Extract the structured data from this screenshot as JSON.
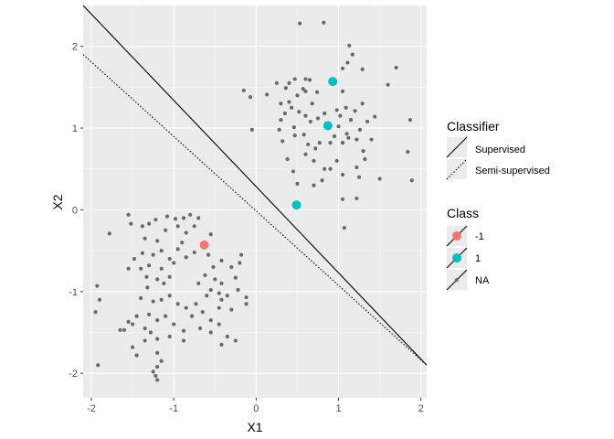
{
  "chart_data": {
    "type": "scatter",
    "xlabel": "X1",
    "ylabel": "X2",
    "xlim": [
      -2.1,
      2.07
    ],
    "ylim": [
      -2.3,
      2.5
    ],
    "x_ticks": [
      -2,
      -1,
      0,
      1,
      2
    ],
    "y_ticks": [
      -2,
      -1,
      0,
      1,
      2
    ],
    "x_tick_labels": [
      "-2",
      "-1",
      "0",
      "1",
      "2"
    ],
    "y_tick_labels": [
      "-2",
      "-1",
      "0",
      "1",
      "2"
    ],
    "grid": true,
    "background": "#ebebeb",
    "legend_position": "right",
    "lines": [
      {
        "name": "Supervised",
        "style": "solid",
        "x": [
          -2.1,
          2.07
        ],
        "y": [
          2.5,
          -1.9
        ]
      },
      {
        "name": "Semi-supervised",
        "style": "dotted",
        "x": [
          -2.1,
          2.07
        ],
        "y": [
          1.9,
          -1.9
        ]
      }
    ],
    "classes": [
      {
        "name": "-1",
        "color": "#f8766d"
      },
      {
        "name": "1",
        "color": "#00bfc4"
      },
      {
        "name": "NA",
        "color": "#696969"
      }
    ],
    "labeled_points": [
      {
        "x": -0.63,
        "y": -0.43,
        "class": "-1"
      },
      {
        "x": 0.93,
        "y": 1.57,
        "class": "1"
      },
      {
        "x": 0.87,
        "y": 1.03,
        "class": "1"
      },
      {
        "x": 0.49,
        "y": 0.06,
        "class": "1"
      }
    ],
    "unlabeled_points": [
      {
        "x": 0.53,
        "y": 2.28
      },
      {
        "x": 0.82,
        "y": 2.29
      },
      {
        "x": 1.13,
        "y": 2.01
      },
      {
        "x": 1.17,
        "y": 1.9
      },
      {
        "x": 1.11,
        "y": 1.8
      },
      {
        "x": 1.05,
        "y": 1.73
      },
      {
        "x": 1.29,
        "y": 1.72
      },
      {
        "x": 1.7,
        "y": 1.74
      },
      {
        "x": 1.6,
        "y": 1.53
      },
      {
        "x": 0.6,
        "y": 1.6
      },
      {
        "x": 0.65,
        "y": 1.59
      },
      {
        "x": 0.47,
        "y": 1.6
      },
      {
        "x": 0.4,
        "y": 1.55
      },
      {
        "x": 0.36,
        "y": 1.49
      },
      {
        "x": 0.57,
        "y": 1.48
      },
      {
        "x": 0.6,
        "y": 1.45
      },
      {
        "x": 0.74,
        "y": 1.44
      },
      {
        "x": 0.5,
        "y": 1.4
      },
      {
        "x": 0.13,
        "y": 1.41
      },
      {
        "x": -0.15,
        "y": 1.46
      },
      {
        "x": -0.07,
        "y": 1.38
      },
      {
        "x": 0.4,
        "y": 1.32
      },
      {
        "x": 0.3,
        "y": 1.3
      },
      {
        "x": 0.52,
        "y": 1.2
      },
      {
        "x": 0.6,
        "y": 1.15
      },
      {
        "x": 0.43,
        "y": 1.25
      },
      {
        "x": 0.35,
        "y": 1.18
      },
      {
        "x": 0.3,
        "y": 1.1
      },
      {
        "x": 0.28,
        "y": 0.98
      },
      {
        "x": 0.46,
        "y": 1.01
      },
      {
        "x": 0.47,
        "y": 0.91
      },
      {
        "x": 0.32,
        "y": 0.84
      },
      {
        "x": 0.58,
        "y": 0.92
      },
      {
        "x": 0.63,
        "y": 0.8
      },
      {
        "x": 0.6,
        "y": 0.68
      },
      {
        "x": 0.72,
        "y": 0.75
      },
      {
        "x": 0.77,
        "y": 0.82
      },
      {
        "x": 0.66,
        "y": 1.08
      },
      {
        "x": 0.75,
        "y": 1.12
      },
      {
        "x": 0.83,
        "y": 1.18
      },
      {
        "x": 0.98,
        "y": 1.22
      },
      {
        "x": 1.02,
        "y": 1.15
      },
      {
        "x": 1.09,
        "y": 1.25
      },
      {
        "x": 1.15,
        "y": 1.1
      },
      {
        "x": 1.2,
        "y": 1.21
      },
      {
        "x": 1.29,
        "y": 1.3
      },
      {
        "x": 1.35,
        "y": 1.08
      },
      {
        "x": 1.44,
        "y": 1.14
      },
      {
        "x": 1.26,
        "y": 0.98
      },
      {
        "x": 1.1,
        "y": 0.93
      },
      {
        "x": 1.0,
        "y": 1.02
      },
      {
        "x": 0.95,
        "y": 0.9
      },
      {
        "x": 0.9,
        "y": 0.82
      },
      {
        "x": 1.05,
        "y": 0.82
      },
      {
        "x": 1.12,
        "y": 0.88
      },
      {
        "x": 1.22,
        "y": 0.86
      },
      {
        "x": 1.4,
        "y": 0.86
      },
      {
        "x": 1.3,
        "y": 0.72
      },
      {
        "x": 0.98,
        "y": 0.6
      },
      {
        "x": 0.9,
        "y": 0.5
      },
      {
        "x": 0.83,
        "y": 0.5
      },
      {
        "x": 0.7,
        "y": 0.6
      },
      {
        "x": 0.45,
        "y": 0.47
      },
      {
        "x": 0.5,
        "y": 0.32
      },
      {
        "x": 0.7,
        "y": 0.3
      },
      {
        "x": 0.8,
        "y": 0.36
      },
      {
        "x": 1.05,
        "y": 0.43
      },
      {
        "x": 1.22,
        "y": 0.52
      },
      {
        "x": 1.25,
        "y": 0.4
      },
      {
        "x": 1.5,
        "y": 0.38
      },
      {
        "x": 1.05,
        "y": 0.13
      },
      {
        "x": 1.22,
        "y": 0.14
      },
      {
        "x": 1.07,
        "y": -0.22
      },
      {
        "x": 1.87,
        "y": 1.1
      },
      {
        "x": 1.84,
        "y": 0.71
      },
      {
        "x": 1.89,
        "y": 0.36
      },
      {
        "x": -0.05,
        "y": 0.98
      },
      {
        "x": 0.25,
        "y": 1.55
      },
      {
        "x": 0.68,
        "y": 1.3
      },
      {
        "x": 1.05,
        "y": 1.45
      },
      {
        "x": 0.38,
        "y": 0.62
      },
      {
        "x": 1.32,
        "y": 0.62
      },
      {
        "x": -1.55,
        "y": -0.06
      },
      {
        "x": -1.78,
        "y": -0.29
      },
      {
        "x": -1.52,
        "y": -0.17
      },
      {
        "x": -1.38,
        "y": -0.2
      },
      {
        "x": -1.3,
        "y": -0.17
      },
      {
        "x": -1.22,
        "y": -0.12
      },
      {
        "x": -1.08,
        "y": -0.08
      },
      {
        "x": -0.98,
        "y": -0.11
      },
      {
        "x": -0.88,
        "y": -0.1
      },
      {
        "x": -0.8,
        "y": -0.06
      },
      {
        "x": -0.7,
        "y": -0.1
      },
      {
        "x": -0.95,
        "y": -0.2
      },
      {
        "x": -0.75,
        "y": -0.2
      },
      {
        "x": -0.85,
        "y": -0.28
      },
      {
        "x": -0.55,
        "y": -0.3
      },
      {
        "x": -1.1,
        "y": -0.25
      },
      {
        "x": -1.2,
        "y": -0.38
      },
      {
        "x": -1.35,
        "y": -0.35
      },
      {
        "x": -1.15,
        "y": -0.5
      },
      {
        "x": -1.25,
        "y": -0.55
      },
      {
        "x": -1.38,
        "y": -0.53
      },
      {
        "x": -1.48,
        "y": -0.6
      },
      {
        "x": -1.55,
        "y": -0.72
      },
      {
        "x": -1.4,
        "y": -0.72
      },
      {
        "x": -1.3,
        "y": -0.68
      },
      {
        "x": -1.33,
        "y": -0.82
      },
      {
        "x": -1.15,
        "y": -0.72
      },
      {
        "x": -1.05,
        "y": -0.6
      },
      {
        "x": -0.95,
        "y": -0.48
      },
      {
        "x": -0.85,
        "y": -0.58
      },
      {
        "x": -0.75,
        "y": -0.52
      },
      {
        "x": -0.58,
        "y": -0.55
      },
      {
        "x": -0.52,
        "y": -0.7
      },
      {
        "x": -0.62,
        "y": -0.8
      },
      {
        "x": -0.7,
        "y": -0.9
      },
      {
        "x": -0.5,
        "y": -0.85
      },
      {
        "x": -0.55,
        "y": -0.98
      },
      {
        "x": -0.45,
        "y": -1.02
      },
      {
        "x": -0.6,
        "y": -1.05
      },
      {
        "x": -0.42,
        "y": -0.9
      },
      {
        "x": -0.35,
        "y": -1.05
      },
      {
        "x": -0.22,
        "y": -0.98
      },
      {
        "x": -0.25,
        "y": -0.83
      },
      {
        "x": -0.3,
        "y": -0.7
      },
      {
        "x": -0.42,
        "y": -0.62
      },
      {
        "x": -1.05,
        "y": -0.82
      },
      {
        "x": -1.12,
        "y": -0.9
      },
      {
        "x": -1.2,
        "y": -0.85
      },
      {
        "x": -1.32,
        "y": -0.95
      },
      {
        "x": -1.4,
        "y": -1.08
      },
      {
        "x": -1.25,
        "y": -1.12
      },
      {
        "x": -1.15,
        "y": -1.1
      },
      {
        "x": -1.05,
        "y": -1.05
      },
      {
        "x": -0.95,
        "y": -1.15
      },
      {
        "x": -0.85,
        "y": -1.2
      },
      {
        "x": -0.73,
        "y": -1.15
      },
      {
        "x": -0.65,
        "y": -1.25
      },
      {
        "x": -0.55,
        "y": -1.35
      },
      {
        "x": -0.78,
        "y": -1.3
      },
      {
        "x": -1.1,
        "y": -1.3
      },
      {
        "x": -1.2,
        "y": -1.35
      },
      {
        "x": -1.3,
        "y": -1.28
      },
      {
        "x": -1.45,
        "y": -1.3
      },
      {
        "x": -1.5,
        "y": -1.4
      },
      {
        "x": -1.55,
        "y": -1.37
      },
      {
        "x": -1.6,
        "y": -1.47
      },
      {
        "x": -1.65,
        "y": -1.47
      },
      {
        "x": -1.35,
        "y": -1.45
      },
      {
        "x": -1.28,
        "y": -1.5
      },
      {
        "x": -1.0,
        "y": -1.4
      },
      {
        "x": -0.88,
        "y": -1.48
      },
      {
        "x": -0.68,
        "y": -1.45
      },
      {
        "x": -0.55,
        "y": -1.5
      },
      {
        "x": -0.45,
        "y": -1.4
      },
      {
        "x": -0.35,
        "y": -1.55
      },
      {
        "x": -0.25,
        "y": -1.6
      },
      {
        "x": -0.42,
        "y": -1.65
      },
      {
        "x": -0.88,
        "y": -1.6
      },
      {
        "x": -1.05,
        "y": -1.55
      },
      {
        "x": -1.35,
        "y": -1.6
      },
      {
        "x": -1.5,
        "y": -1.68
      },
      {
        "x": -1.45,
        "y": -1.78
      },
      {
        "x": -1.2,
        "y": -1.75
      },
      {
        "x": -1.15,
        "y": -1.85
      },
      {
        "x": -1.2,
        "y": -1.92
      },
      {
        "x": -1.25,
        "y": -1.98
      },
      {
        "x": -1.22,
        "y": -2.03
      },
      {
        "x": -1.2,
        "y": -2.08
      },
      {
        "x": -1.92,
        "y": -1.9
      },
      {
        "x": -1.93,
        "y": -0.93
      },
      {
        "x": -1.9,
        "y": -1.1
      },
      {
        "x": -1.95,
        "y": -1.25
      },
      {
        "x": -0.42,
        "y": -1.1
      },
      {
        "x": -0.45,
        "y": -1.2
      },
      {
        "x": -0.3,
        "y": -1.22
      },
      {
        "x": -0.2,
        "y": -0.65
      },
      {
        "x": -0.18,
        "y": -0.55
      },
      {
        "x": -0.12,
        "y": -1.07
      },
      {
        "x": -0.12,
        "y": -1.15
      },
      {
        "x": -0.9,
        "y": -0.4
      },
      {
        "x": -1.0,
        "y": -0.65
      },
      {
        "x": -1.2,
        "y": -1.58
      }
    ]
  },
  "legend": {
    "classifier_title": "Classifier",
    "classifier_items": [
      "Supervised",
      "Semi-supervised"
    ],
    "class_title": "Class",
    "class_items": [
      "-1",
      "1",
      "NA"
    ]
  }
}
